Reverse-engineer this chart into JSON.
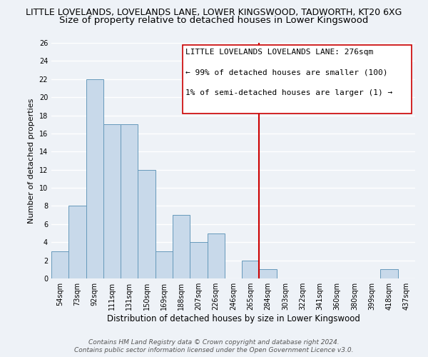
{
  "title": "LITTLE LOVELANDS, LOVELANDS LANE, LOWER KINGSWOOD, TADWORTH, KT20 6XG",
  "subtitle": "Size of property relative to detached houses in Lower Kingswood",
  "xlabel": "Distribution of detached houses by size in Lower Kingswood",
  "ylabel": "Number of detached properties",
  "bin_labels": [
    "54sqm",
    "73sqm",
    "92sqm",
    "111sqm",
    "131sqm",
    "150sqm",
    "169sqm",
    "188sqm",
    "207sqm",
    "226sqm",
    "246sqm",
    "265sqm",
    "284sqm",
    "303sqm",
    "322sqm",
    "341sqm",
    "360sqm",
    "380sqm",
    "399sqm",
    "418sqm",
    "437sqm"
  ],
  "bar_heights": [
    3,
    8,
    22,
    17,
    17,
    12,
    3,
    7,
    4,
    5,
    0,
    2,
    1,
    0,
    0,
    0,
    0,
    0,
    0,
    1,
    0
  ],
  "bar_color": "#c8d9ea",
  "bar_edge_color": "#6699bb",
  "ylim": [
    0,
    26
  ],
  "yticks": [
    0,
    2,
    4,
    6,
    8,
    10,
    12,
    14,
    16,
    18,
    20,
    22,
    24,
    26
  ],
  "vline_x": 11.5,
  "vline_color": "#cc0000",
  "annotation_line1": "LITTLE LOVELANDS LOVELANDS LANE: 276sqm",
  "annotation_line2": "← 99% of detached houses are smaller (100)",
  "annotation_line3": "1% of semi-detached houses are larger (1) →",
  "footer_line1": "Contains HM Land Registry data © Crown copyright and database right 2024.",
  "footer_line2": "Contains public sector information licensed under the Open Government Licence v3.0.",
  "background_color": "#eef2f7",
  "grid_color": "#ffffff",
  "title_fontsize": 9,
  "subtitle_fontsize": 9.5,
  "xlabel_fontsize": 8.5,
  "ylabel_fontsize": 8,
  "tick_fontsize": 7,
  "annotation_fontsize": 8,
  "footer_fontsize": 6.5
}
